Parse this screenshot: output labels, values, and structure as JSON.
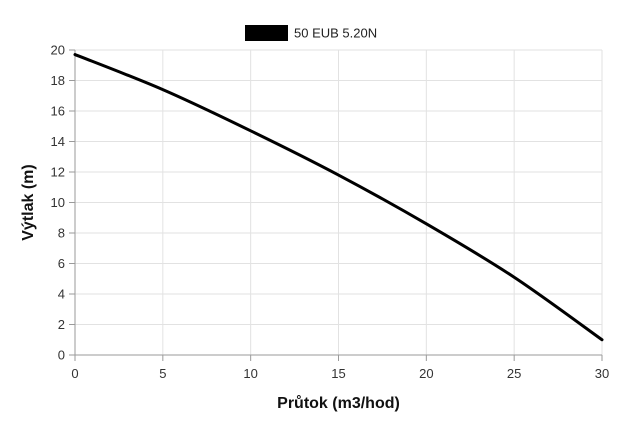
{
  "chart_data": {
    "type": "line",
    "xlabel": "Průtok (m3/hod)",
    "ylabel": "Výtlak (m)",
    "xlim": [
      0,
      30
    ],
    "ylim": [
      0,
      20
    ],
    "x_ticks": [
      "0",
      "5",
      "10",
      "15",
      "20",
      "25",
      "30"
    ],
    "y_ticks": [
      "0",
      "2",
      "4",
      "6",
      "8",
      "10",
      "12",
      "14",
      "16",
      "18",
      "20"
    ],
    "grid": true,
    "legend_position": "top-center",
    "series": [
      {
        "name": "50 EUB 5.20N",
        "color": "#000000",
        "x": [
          0,
          5,
          10,
          15,
          20,
          25,
          30
        ],
        "y": [
          19.7,
          17.4,
          14.7,
          11.8,
          8.6,
          5.1,
          1.0
        ]
      }
    ]
  }
}
